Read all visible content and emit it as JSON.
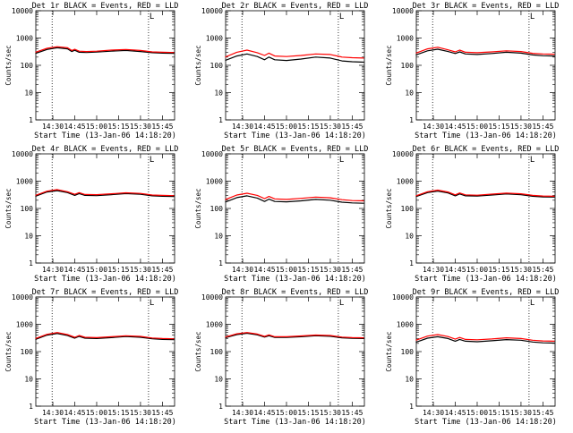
{
  "colors": {
    "events": "#000000",
    "lld": "#ff0000",
    "marker": "#000000",
    "background": "#ffffff"
  },
  "chart_data": [
    {
      "type": "line",
      "title": "Det 1r BLACK = Events, RED = LLD",
      "xlabel": "Start Time (13-Jan-06 14:18:20)",
      "ylabel": "Counts/sec",
      "xscale": "time",
      "yscale": "log",
      "xlim": [
        "14:18:20",
        "15:53:20"
      ],
      "ylim": [
        1,
        10000
      ],
      "x_ticks": [
        "14:30",
        "14:45",
        "15:00",
        "15:15",
        "15:30",
        "15:45"
      ],
      "y_ticks": [
        "1",
        "10",
        "100",
        "1000",
        "10000"
      ],
      "markers": [
        "14:29:30",
        "15:35:30"
      ],
      "corner_symbol": "L",
      "x": [
        "14:18",
        "14:26",
        "14:33",
        "14:40",
        "14:43",
        "14:45",
        "14:48",
        "14:53",
        "15:00",
        "15:10",
        "15:20",
        "15:30",
        "15:38",
        "15:45",
        "15:53"
      ],
      "series": [
        {
          "name": "Events",
          "values": [
            270,
            380,
            440,
            400,
            320,
            355,
            300,
            295,
            305,
            330,
            350,
            320,
            290,
            280,
            275
          ]
        },
        {
          "name": "LLD",
          "values": [
            300,
            420,
            480,
            440,
            350,
            390,
            330,
            320,
            330,
            360,
            380,
            350,
            310,
            300,
            295
          ]
        }
      ]
    },
    {
      "type": "line",
      "title": "Det 2r BLACK = Events, RED = LLD",
      "xlabel": "Start Time (13-Jan-06 14:18:20)",
      "ylabel": "Counts/sec",
      "xscale": "time",
      "yscale": "log",
      "xlim": [
        "14:18:20",
        "15:53:20"
      ],
      "ylim": [
        1,
        10000
      ],
      "x_ticks": [
        "14:30",
        "14:45",
        "15:00",
        "15:15",
        "15:30",
        "15:45"
      ],
      "y_ticks": [
        "1",
        "10",
        "100",
        "1000",
        "10000"
      ],
      "markers": [
        "14:29:30",
        "15:35:30"
      ],
      "corner_symbol": "L",
      "x": [
        "14:18",
        "14:26",
        "14:33",
        "14:40",
        "14:45",
        "14:48",
        "14:52",
        "15:00",
        "15:10",
        "15:20",
        "15:30",
        "15:38",
        "15:45",
        "15:53"
      ],
      "series": [
        {
          "name": "Events",
          "values": [
            150,
            220,
            260,
            210,
            160,
            200,
            160,
            150,
            170,
            200,
            185,
            145,
            135,
            130
          ]
        },
        {
          "name": "LLD",
          "values": [
            200,
            300,
            360,
            290,
            230,
            280,
            220,
            210,
            230,
            260,
            250,
            200,
            190,
            185
          ]
        }
      ]
    },
    {
      "type": "line",
      "title": "Det 3r BLACK = Events, RED = LLD",
      "xlabel": "Start Time (13-Jan-06 14:18:20)",
      "ylabel": "Counts/sec",
      "xscale": "time",
      "yscale": "log",
      "xlim": [
        "14:18:20",
        "15:53:20"
      ],
      "ylim": [
        1,
        10000
      ],
      "x_ticks": [
        "14:30",
        "14:45",
        "15:00",
        "15:15",
        "15:30",
        "15:45"
      ],
      "y_ticks": [
        "1",
        "10",
        "100",
        "1000",
        "10000"
      ],
      "markers": [
        "14:29:30",
        "15:35:30"
      ],
      "corner_symbol": "L",
      "x": [
        "14:18",
        "14:26",
        "14:33",
        "14:40",
        "14:45",
        "14:48",
        "14:52",
        "15:00",
        "15:10",
        "15:20",
        "15:30",
        "15:38",
        "15:45",
        "15:53"
      ],
      "series": [
        {
          "name": "Events",
          "values": [
            240,
            340,
            390,
            320,
            270,
            310,
            260,
            250,
            270,
            300,
            280,
            240,
            225,
            220
          ]
        },
        {
          "name": "LLD",
          "values": [
            280,
            400,
            460,
            370,
            310,
            360,
            300,
            290,
            310,
            340,
            320,
            275,
            260,
            255
          ]
        }
      ]
    },
    {
      "type": "line",
      "title": "Det 4r BLACK = Events, RED = LLD",
      "xlabel": "Start Time (13-Jan-06 14:18:20)",
      "ylabel": "Counts/sec",
      "xscale": "time",
      "yscale": "log",
      "xlim": [
        "14:18:20",
        "15:53:20"
      ],
      "ylim": [
        1,
        10000
      ],
      "x_ticks": [
        "14:30",
        "14:45",
        "15:00",
        "15:15",
        "15:30",
        "15:45"
      ],
      "y_ticks": [
        "1",
        "10",
        "100",
        "1000",
        "10000"
      ],
      "markers": [
        "14:29:30",
        "15:35:30"
      ],
      "corner_symbol": "L",
      "x": [
        "14:18",
        "14:26",
        "14:33",
        "14:40",
        "14:45",
        "14:48",
        "14:52",
        "15:00",
        "15:10",
        "15:20",
        "15:30",
        "15:38",
        "15:45",
        "15:53"
      ],
      "series": [
        {
          "name": "Events",
          "values": [
            280,
            400,
            450,
            380,
            300,
            350,
            300,
            295,
            320,
            350,
            330,
            290,
            280,
            275
          ]
        },
        {
          "name": "LLD",
          "values": [
            300,
            430,
            490,
            410,
            330,
            380,
            325,
            320,
            345,
            375,
            355,
            310,
            300,
            295
          ]
        }
      ]
    },
    {
      "type": "line",
      "title": "Det 5r BLACK = Events, RED = LLD",
      "xlabel": "Start Time (13-Jan-06 14:18:20)",
      "ylabel": "Counts/sec",
      "xscale": "time",
      "yscale": "log",
      "xlim": [
        "14:18:20",
        "15:53:20"
      ],
      "ylim": [
        1,
        10000
      ],
      "x_ticks": [
        "14:30",
        "14:45",
        "15:00",
        "15:15",
        "15:30",
        "15:45"
      ],
      "y_ticks": [
        "1",
        "10",
        "100",
        "1000",
        "10000"
      ],
      "markers": [
        "14:29:30",
        "15:35:30"
      ],
      "corner_symbol": "L",
      "x": [
        "14:18",
        "14:26",
        "14:33",
        "14:40",
        "14:45",
        "14:48",
        "14:52",
        "15:00",
        "15:10",
        "15:20",
        "15:30",
        "15:38",
        "15:45",
        "15:53"
      ],
      "series": [
        {
          "name": "Events",
          "values": [
            170,
            250,
            290,
            240,
            180,
            220,
            180,
            175,
            190,
            215,
            200,
            170,
            160,
            155
          ]
        },
        {
          "name": "LLD",
          "values": [
            210,
            310,
            360,
            300,
            230,
            275,
            225,
            215,
            235,
            260,
            245,
            210,
            195,
            190
          ]
        }
      ]
    },
    {
      "type": "line",
      "title": "Det 6r BLACK = Events, RED = LLD",
      "xlabel": "Start Time (13-Jan-06 14:18:20)",
      "ylabel": "Counts/sec",
      "xscale": "time",
      "yscale": "log",
      "xlim": [
        "14:18:20",
        "15:53:20"
      ],
      "ylim": [
        1,
        10000
      ],
      "x_ticks": [
        "14:30",
        "14:45",
        "15:00",
        "15:15",
        "15:30",
        "15:45"
      ],
      "y_ticks": [
        "1",
        "10",
        "100",
        "1000",
        "10000"
      ],
      "markers": [
        "14:29:30",
        "15:35:30"
      ],
      "corner_symbol": "L",
      "x": [
        "14:18",
        "14:26",
        "14:33",
        "14:40",
        "14:45",
        "14:48",
        "14:52",
        "15:00",
        "15:10",
        "15:20",
        "15:30",
        "15:38",
        "15:45",
        "15:53"
      ],
      "series": [
        {
          "name": "Events",
          "values": [
            270,
            380,
            430,
            370,
            290,
            340,
            290,
            285,
            310,
            340,
            320,
            280,
            265,
            260
          ]
        },
        {
          "name": "LLD",
          "values": [
            290,
            410,
            470,
            400,
            315,
            370,
            315,
            305,
            335,
            365,
            345,
            300,
            285,
            280
          ]
        }
      ]
    },
    {
      "type": "line",
      "title": "Det 7r BLACK = Events, RED = LLD",
      "xlabel": "Start Time (13-Jan-06 14:18:20)",
      "ylabel": "Counts/sec",
      "xscale": "time",
      "yscale": "log",
      "xlim": [
        "14:18:20",
        "15:53:20"
      ],
      "ylim": [
        1,
        10000
      ],
      "x_ticks": [
        "14:30",
        "14:45",
        "15:00",
        "15:15",
        "15:30",
        "15:45"
      ],
      "y_ticks": [
        "1",
        "10",
        "100",
        "1000",
        "10000"
      ],
      "markers": [
        "14:29:30",
        "15:35:30"
      ],
      "corner_symbol": "L",
      "x": [
        "14:18",
        "14:26",
        "14:33",
        "14:40",
        "14:45",
        "14:48",
        "14:52",
        "15:00",
        "15:10",
        "15:20",
        "15:30",
        "15:38",
        "15:45",
        "15:53"
      ],
      "series": [
        {
          "name": "Events",
          "values": [
            280,
            400,
            460,
            390,
            310,
            360,
            310,
            300,
            325,
            355,
            335,
            295,
            280,
            275
          ]
        },
        {
          "name": "LLD",
          "values": [
            300,
            430,
            500,
            420,
            335,
            390,
            335,
            325,
            350,
            380,
            360,
            315,
            300,
            295
          ]
        }
      ]
    },
    {
      "type": "line",
      "title": "Det 8r BLACK = Events, RED = LLD",
      "xlabel": "Start Time (13-Jan-06 14:18:20)",
      "ylabel": "Counts/sec",
      "xscale": "time",
      "yscale": "log",
      "xlim": [
        "14:18:20",
        "15:53:20"
      ],
      "ylim": [
        1,
        10000
      ],
      "x_ticks": [
        "14:30",
        "14:45",
        "15:00",
        "15:15",
        "15:30",
        "15:45"
      ],
      "y_ticks": [
        "1",
        "10",
        "100",
        "1000",
        "10000"
      ],
      "markers": [
        "14:29:30",
        "15:35:30"
      ],
      "corner_symbol": "L",
      "x": [
        "14:18",
        "14:26",
        "14:33",
        "14:40",
        "14:45",
        "14:48",
        "14:52",
        "15:00",
        "15:10",
        "15:20",
        "15:30",
        "15:38",
        "15:45",
        "15:53"
      ],
      "series": [
        {
          "name": "Events",
          "values": [
            320,
            420,
            470,
            410,
            340,
            380,
            330,
            330,
            350,
            380,
            365,
            320,
            305,
            300
          ]
        },
        {
          "name": "LLD",
          "values": [
            340,
            450,
            500,
            440,
            360,
            410,
            350,
            350,
            375,
            405,
            390,
            340,
            325,
            320
          ]
        }
      ]
    },
    {
      "type": "line",
      "title": "Det 9r BLACK = Events, RED = LLD",
      "xlabel": "Start Time (13-Jan-06 14:18:20)",
      "ylabel": "Counts/sec",
      "xscale": "time",
      "yscale": "log",
      "xlim": [
        "14:18:20",
        "15:53:20"
      ],
      "ylim": [
        1,
        10000
      ],
      "x_ticks": [
        "14:30",
        "14:45",
        "15:00",
        "15:15",
        "15:30",
        "15:45"
      ],
      "y_ticks": [
        "1",
        "10",
        "100",
        "1000",
        "10000"
      ],
      "markers": [
        "14:29:30",
        "15:35:30"
      ],
      "corner_symbol": "L",
      "x": [
        "14:18",
        "14:26",
        "14:33",
        "14:40",
        "14:45",
        "14:48",
        "14:52",
        "15:00",
        "15:10",
        "15:20",
        "15:30",
        "15:38",
        "15:45",
        "15:53"
      ],
      "series": [
        {
          "name": "Events",
          "values": [
            220,
            310,
            350,
            300,
            240,
            280,
            240,
            230,
            250,
            275,
            260,
            225,
            210,
            205
          ]
        },
        {
          "name": "LLD",
          "values": [
            260,
            370,
            420,
            355,
            285,
            330,
            280,
            270,
            290,
            320,
            300,
            260,
            245,
            240
          ]
        }
      ]
    }
  ]
}
